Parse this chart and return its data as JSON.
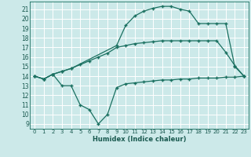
{
  "xlabel": "Humidex (Indice chaleur)",
  "bg_color": "#cce9e9",
  "grid_color": "#ffffff",
  "line_color": "#1a7060",
  "xlim": [
    -0.5,
    23.5
  ],
  "ylim": [
    8.5,
    21.8
  ],
  "xticks": [
    0,
    1,
    2,
    3,
    4,
    5,
    6,
    7,
    8,
    9,
    10,
    11,
    12,
    13,
    14,
    15,
    16,
    17,
    18,
    19,
    20,
    21,
    22,
    23
  ],
  "yticks": [
    9,
    10,
    11,
    12,
    13,
    14,
    15,
    16,
    17,
    18,
    19,
    20,
    21
  ],
  "line1_x": [
    0,
    1,
    2,
    3,
    4,
    5,
    6,
    7,
    8,
    9,
    10,
    11,
    12,
    13,
    14,
    15,
    16,
    17,
    18,
    19,
    20,
    21,
    22,
    23
  ],
  "line1_y": [
    14.0,
    13.7,
    14.2,
    13.0,
    13.0,
    11.0,
    10.5,
    9.0,
    10.0,
    12.8,
    13.2,
    13.3,
    13.4,
    13.5,
    13.6,
    13.6,
    13.7,
    13.7,
    13.8,
    13.8,
    13.8,
    13.9,
    13.9,
    14.0
  ],
  "line2_x": [
    0,
    1,
    2,
    3,
    4,
    5,
    6,
    7,
    8,
    9,
    10,
    11,
    12,
    13,
    14,
    15,
    16,
    17,
    18,
    19,
    20,
    21,
    22,
    23
  ],
  "line2_y": [
    14.0,
    13.7,
    14.2,
    14.5,
    14.8,
    15.2,
    15.6,
    16.0,
    16.4,
    17.0,
    17.2,
    17.4,
    17.5,
    17.6,
    17.7,
    17.7,
    17.7,
    17.7,
    17.7,
    17.7,
    17.7,
    16.5,
    15.1,
    14.0
  ],
  "line3_x": [
    0,
    1,
    2,
    3,
    4,
    9,
    10,
    11,
    12,
    13,
    14,
    15,
    16,
    17,
    18,
    19,
    20,
    21,
    22,
    23
  ],
  "line3_y": [
    14.0,
    13.7,
    14.2,
    14.5,
    14.8,
    17.2,
    19.3,
    20.3,
    20.8,
    21.1,
    21.3,
    21.3,
    21.0,
    20.8,
    19.5,
    19.5,
    19.5,
    19.5,
    15.0,
    14.0
  ]
}
